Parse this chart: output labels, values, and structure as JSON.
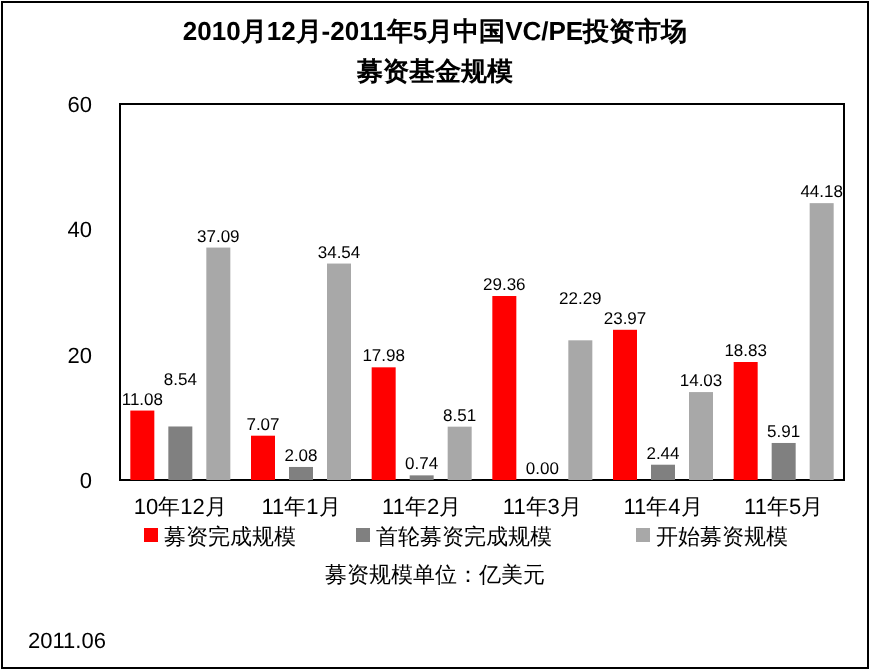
{
  "chart_data": {
    "type": "bar",
    "title": "2010月12月-2011年5月中国VC/PE投资市场",
    "subtitle": "募资基金规模",
    "categories": [
      "10年12月",
      "11年1月",
      "11年2月",
      "11年3月",
      "11年4月",
      "11年5月"
    ],
    "series": [
      {
        "name": "募资完成规模",
        "color": "#ff0000",
        "values": [
          11.08,
          7.07,
          17.98,
          29.36,
          23.97,
          18.83
        ]
      },
      {
        "name": "首轮募资完成规模",
        "color": "#808080",
        "values": [
          8.54,
          2.08,
          0.74,
          0.0,
          2.44,
          5.91
        ],
        "value_labels": [
          "8.54",
          "2.08",
          "0.74",
          "0.00",
          "2.44",
          "5.91"
        ]
      },
      {
        "name": "开始募资规模",
        "color": "#a8a8a8",
        "values": [
          37.09,
          34.54,
          8.51,
          22.29,
          14.03,
          44.18
        ]
      }
    ],
    "ylim": [
      0,
      60
    ],
    "yticks": [
      0,
      20,
      40,
      60
    ],
    "grid": false,
    "legend": "bottom",
    "data_labels": true,
    "annotations": [
      "募资规模单位：亿美元",
      "2011.06"
    ]
  }
}
